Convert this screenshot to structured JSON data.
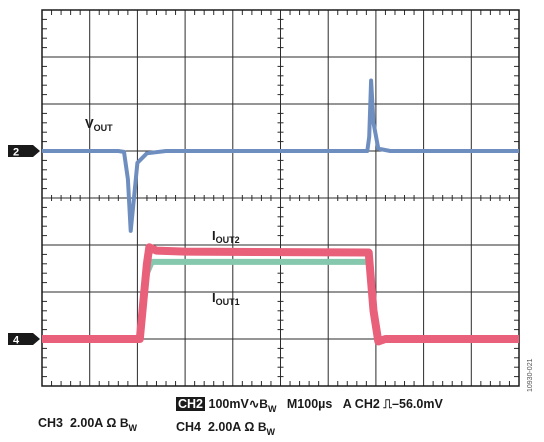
{
  "chart_data": {
    "type": "line",
    "x_divisions": 10,
    "y_divisions": 8,
    "time_per_div_us": 100,
    "x_range_us": [
      0,
      1000
    ],
    "grid": true,
    "channels": {
      "ch2": {
        "marker": "2",
        "color": "#6e8ec0",
        "label_main": "V",
        "label_sub": "OUT",
        "baseline_div": 5.0,
        "points": [
          [
            0,
            5.0
          ],
          [
            1.6,
            5.0
          ],
          [
            1.72,
            4.98
          ],
          [
            1.8,
            4.4
          ],
          [
            1.86,
            3.3
          ],
          [
            1.9,
            3.7
          ],
          [
            2.0,
            4.75
          ],
          [
            2.2,
            4.95
          ],
          [
            2.6,
            5.0
          ],
          [
            5.5,
            5.0
          ],
          [
            6.82,
            5.0
          ],
          [
            6.86,
            5.3
          ],
          [
            6.9,
            6.5
          ],
          [
            6.95,
            5.6
          ],
          [
            7.05,
            5.05
          ],
          [
            7.3,
            5.0
          ],
          [
            10,
            5.0
          ]
        ]
      },
      "ch4": {
        "marker": "4",
        "color": "#e8607a",
        "label_main": "I",
        "label_sub": "OUT2",
        "baseline_div": 1.0,
        "points": [
          [
            0,
            1.0
          ],
          [
            2.05,
            1.0
          ],
          [
            2.2,
            2.6
          ],
          [
            2.25,
            2.95
          ],
          [
            2.4,
            2.88
          ],
          [
            3.0,
            2.86
          ],
          [
            6.85,
            2.84
          ],
          [
            6.95,
            1.6
          ],
          [
            7.05,
            0.95
          ],
          [
            7.2,
            1.0
          ],
          [
            10,
            1.0
          ]
        ]
      },
      "ch3": {
        "color": "#86c8ae",
        "label_main": "I",
        "label_sub": "OUT1",
        "points": [
          [
            0,
            1.0
          ],
          [
            2.05,
            1.0
          ],
          [
            2.2,
            2.4
          ],
          [
            2.3,
            2.64
          ],
          [
            3.0,
            2.64
          ],
          [
            6.85,
            2.64
          ],
          [
            6.95,
            1.5
          ],
          [
            7.05,
            0.98
          ],
          [
            7.2,
            1.0
          ],
          [
            10,
            1.0
          ]
        ]
      }
    }
  },
  "status": {
    "line1": {
      "channel": "CH2",
      "scale": "100mV",
      "coupling_symbol": "∿",
      "bw_main": "B",
      "bw_sub": "W",
      "timebase": "M100µs",
      "trigger": "A CH2",
      "trigger_symbol": "⎍",
      "trigger_level": "–56.0mV"
    },
    "line2_left": {
      "channel": "CH3",
      "scale": "2.00A",
      "ohm": "Ω",
      "bw_main": "B",
      "bw_sub": "W"
    },
    "line2_right": {
      "channel": "CH4",
      "scale": "2.00A",
      "ohm": "Ω",
      "bw_main": "B",
      "bw_sub": "W"
    }
  },
  "figure_id": "10930-021"
}
